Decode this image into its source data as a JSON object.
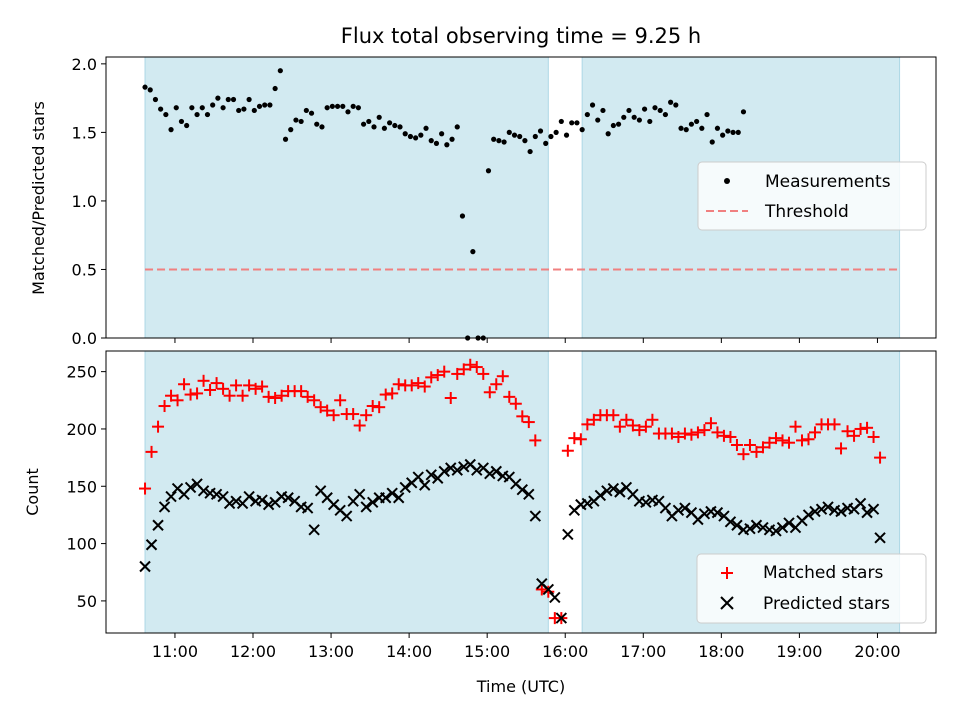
{
  "title": "Flux total observing time = 9.25 h",
  "colors": {
    "band": "#add8e6",
    "measurement": "#000000",
    "threshold": "#f08080",
    "matched": "#ff0000",
    "predicted": "#000000"
  },
  "chart_data": [
    {
      "type": "scatter",
      "ylabel": "Matched/Predicted stars",
      "xlabel": "",
      "ylim": [
        0,
        2.05
      ],
      "yticks": [
        "0.0",
        "0.5",
        "1.0",
        "1.5",
        "2.0"
      ],
      "ytick_values": [
        0,
        0.5,
        1.0,
        1.5,
        2.0
      ],
      "legend_position": "center-right",
      "legend": [
        "Measurements",
        "Threshold"
      ],
      "threshold": 0.5,
      "observing_windows": [
        [
          "10:37",
          "15:47"
        ],
        [
          "16:13",
          "20:17"
        ]
      ],
      "series": [
        {
          "name": "Measurements",
          "points": [
            [
              "10:37",
              1.83
            ],
            [
              "10:41",
              1.81
            ],
            [
              "10:45",
              1.74
            ],
            [
              "10:49",
              1.67
            ],
            [
              "10:53",
              1.63
            ],
            [
              "10:57",
              1.52
            ],
            [
              "11:01",
              1.68
            ],
            [
              "11:05",
              1.58
            ],
            [
              "11:09",
              1.55
            ],
            [
              "11:13",
              1.68
            ],
            [
              "11:17",
              1.63
            ],
            [
              "11:21",
              1.68
            ],
            [
              "11:25",
              1.63
            ],
            [
              "11:29",
              1.7
            ],
            [
              "11:33",
              1.75
            ],
            [
              "11:37",
              1.68
            ],
            [
              "11:41",
              1.74
            ],
            [
              "11:45",
              1.74
            ],
            [
              "11:49",
              1.66
            ],
            [
              "11:53",
              1.67
            ],
            [
              "11:57",
              1.74
            ],
            [
              "12:01",
              1.66
            ],
            [
              "12:05",
              1.69
            ],
            [
              "12:09",
              1.7
            ],
            [
              "12:13",
              1.7
            ],
            [
              "12:17",
              1.82
            ],
            [
              "12:21",
              1.95
            ],
            [
              "12:25",
              1.45
            ],
            [
              "12:29",
              1.52
            ],
            [
              "12:33",
              1.59
            ],
            [
              "12:37",
              1.58
            ],
            [
              "12:41",
              1.66
            ],
            [
              "12:45",
              1.64
            ],
            [
              "12:49",
              1.56
            ],
            [
              "12:53",
              1.54
            ],
            [
              "12:57",
              1.68
            ],
            [
              "13:01",
              1.69
            ],
            [
              "13:05",
              1.69
            ],
            [
              "13:09",
              1.69
            ],
            [
              "13:13",
              1.65
            ],
            [
              "13:17",
              1.69
            ],
            [
              "13:21",
              1.68
            ],
            [
              "13:25",
              1.56
            ],
            [
              "13:29",
              1.58
            ],
            [
              "13:33",
              1.54
            ],
            [
              "13:37",
              1.61
            ],
            [
              "13:41",
              1.53
            ],
            [
              "13:45",
              1.57
            ],
            [
              "13:49",
              1.55
            ],
            [
              "13:53",
              1.54
            ],
            [
              "13:57",
              1.49
            ],
            [
              "14:01",
              1.47
            ],
            [
              "14:05",
              1.46
            ],
            [
              "14:09",
              1.48
            ],
            [
              "14:13",
              1.53
            ],
            [
              "14:17",
              1.44
            ],
            [
              "14:21",
              1.42
            ],
            [
              "14:25",
              1.49
            ],
            [
              "14:29",
              1.41
            ],
            [
              "14:33",
              1.45
            ],
            [
              "14:37",
              1.54
            ],
            [
              "14:41",
              0.89
            ],
            [
              "14:45",
              0.0
            ],
            [
              "14:49",
              0.63
            ],
            [
              "14:53",
              0.0
            ],
            [
              "14:57",
              0.0
            ],
            [
              "15:01",
              1.22
            ],
            [
              "15:05",
              1.45
            ],
            [
              "15:09",
              1.44
            ],
            [
              "15:13",
              1.43
            ],
            [
              "15:17",
              1.5
            ],
            [
              "15:21",
              1.48
            ],
            [
              "15:25",
              1.47
            ],
            [
              "15:29",
              1.44
            ],
            [
              "15:33",
              1.36
            ],
            [
              "15:37",
              1.47
            ],
            [
              "15:41",
              1.51
            ],
            [
              "15:45",
              1.42
            ],
            [
              "15:49",
              1.47
            ],
            [
              "15:53",
              1.5
            ],
            [
              "15:57",
              1.58
            ],
            [
              "16:01",
              1.48
            ],
            [
              "16:05",
              1.57
            ],
            [
              "16:09",
              1.57
            ],
            [
              "16:13",
              1.52
            ],
            [
              "16:17",
              1.63
            ],
            [
              "16:21",
              1.7
            ],
            [
              "16:25",
              1.59
            ],
            [
              "16:29",
              1.66
            ],
            [
              "16:33",
              1.49
            ],
            [
              "16:37",
              1.55
            ],
            [
              "16:41",
              1.56
            ],
            [
              "16:45",
              1.61
            ],
            [
              "16:49",
              1.66
            ],
            [
              "16:53",
              1.61
            ],
            [
              "16:57",
              1.59
            ],
            [
              "17:01",
              1.67
            ],
            [
              "17:05",
              1.58
            ],
            [
              "17:09",
              1.68
            ],
            [
              "17:13",
              1.66
            ],
            [
              "17:17",
              1.63
            ],
            [
              "17:21",
              1.72
            ],
            [
              "17:25",
              1.7
            ],
            [
              "17:29",
              1.53
            ],
            [
              "17:33",
              1.52
            ],
            [
              "17:37",
              1.56
            ],
            [
              "17:41",
              1.58
            ],
            [
              "17:45",
              1.53
            ],
            [
              "17:49",
              1.63
            ],
            [
              "17:53",
              1.43
            ],
            [
              "17:57",
              1.53
            ],
            [
              "18:01",
              1.48
            ],
            [
              "18:05",
              1.51
            ],
            [
              "18:09",
              1.5
            ],
            [
              "18:13",
              1.5
            ],
            [
              "18:17",
              1.65
            ]
          ]
        }
      ]
    },
    {
      "type": "scatter",
      "xlabel": "Time (UTC)",
      "ylabel": "Count",
      "ylim": [
        22,
        268
      ],
      "yticks": [
        "50",
        "100",
        "150",
        "200",
        "250"
      ],
      "ytick_values": [
        50,
        100,
        150,
        200,
        250
      ],
      "xticks": [
        "11:00",
        "12:00",
        "13:00",
        "14:00",
        "15:00",
        "16:00",
        "17:00",
        "18:00",
        "19:00",
        "20:00"
      ],
      "xtick_values": [
        "11:00",
        "12:00",
        "13:00",
        "14:00",
        "15:00",
        "16:00",
        "17:00",
        "18:00",
        "19:00",
        "20:00"
      ],
      "xlim": [
        "10:07",
        "20:45"
      ],
      "legend_position": "lower-right",
      "legend": [
        "Matched stars",
        "Predicted stars"
      ],
      "series": [
        {
          "name": "Matched stars",
          "values": [
            148,
            180,
            202,
            220,
            229,
            225,
            239,
            230,
            231,
            242,
            234,
            240,
            235,
            229,
            238,
            229,
            238,
            235,
            237,
            228,
            227,
            229,
            233,
            233,
            233,
            228,
            225,
            219,
            216,
            212,
            225,
            213,
            213,
            203,
            212,
            220,
            219,
            230,
            231,
            239,
            238,
            238,
            240,
            237,
            245,
            247,
            250,
            227,
            248,
            252,
            256,
            254,
            248,
            232,
            239,
            246,
            228,
            222,
            211,
            206,
            190,
            60,
            58,
            35,
            35,
            181,
            192,
            191,
            204,
            208,
            212,
            212,
            212,
            202,
            208,
            203,
            199,
            202,
            208,
            196,
            196,
            196,
            193,
            196,
            195,
            197,
            199,
            205,
            197,
            194,
            193,
            186,
            178,
            186,
            180,
            184,
            188,
            192,
            190,
            188,
            202,
            190,
            191,
            197,
            204,
            204,
            204,
            183,
            198,
            194,
            200,
            201,
            193,
            175
          ],
          "x_start": "10:37",
          "x_step_min": 5
        },
        {
          "name": "Predicted stars",
          "values": [
            80,
            99,
            116,
            132,
            141,
            148,
            143,
            149,
            152,
            146,
            144,
            143,
            141,
            135,
            137,
            135,
            141,
            137,
            138,
            134,
            136,
            141,
            140,
            137,
            132,
            131,
            112,
            146,
            140,
            134,
            129,
            124,
            137,
            143,
            132,
            136,
            140,
            140,
            144,
            140,
            149,
            153,
            158,
            151,
            160,
            157,
            163,
            166,
            164,
            167,
            169,
            164,
            166,
            161,
            163,
            159,
            158,
            152,
            147,
            143,
            124,
            65,
            60,
            53,
            35,
            108,
            129,
            134,
            135,
            137,
            142,
            146,
            148,
            145,
            149,
            143,
            137,
            136,
            138,
            137,
            131,
            124,
            129,
            131,
            127,
            121,
            126,
            128,
            127,
            124,
            119,
            116,
            112,
            113,
            116,
            114,
            112,
            111,
            114,
            118,
            114,
            120,
            125,
            128,
            130,
            132,
            129,
            128,
            131,
            130,
            135,
            127,
            130,
            105
          ],
          "x_start": "10:37",
          "x_step_min": 5
        }
      ]
    }
  ]
}
